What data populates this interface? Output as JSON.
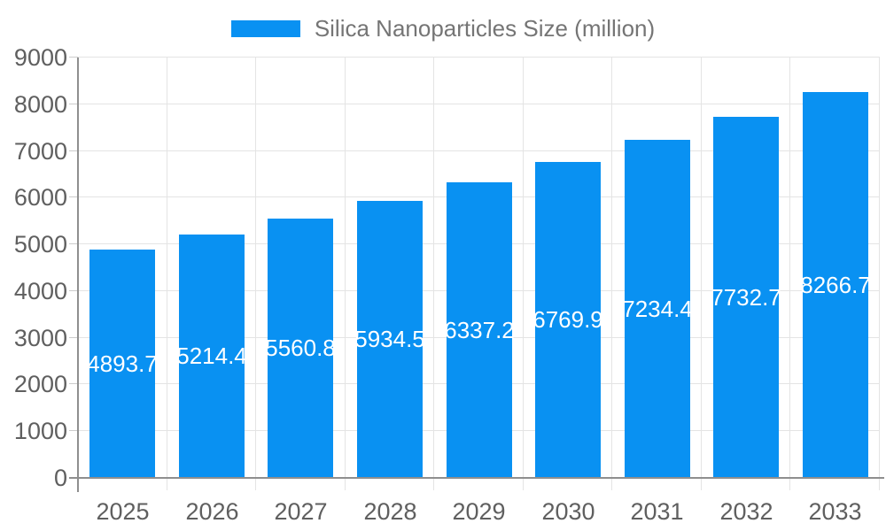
{
  "chart_data": {
    "type": "bar",
    "title": "Silica Nanoparticles Size (million)",
    "categories": [
      "2025",
      "2026",
      "2027",
      "2028",
      "2029",
      "2030",
      "2031",
      "2032",
      "2033"
    ],
    "series": [
      {
        "name": "Silica Nanoparticles Size (million)",
        "values": [
          4893.7,
          5214.4,
          5560.8,
          5934.5,
          6337.2,
          6769.9,
          7234.4,
          7732.7,
          8266.7
        ]
      }
    ],
    "xlabel": "",
    "ylabel": "",
    "ylim": [
      0,
      9000
    ],
    "yticks": [
      0,
      1000,
      2000,
      3000,
      4000,
      5000,
      6000,
      7000,
      8000,
      9000
    ],
    "grid": true,
    "legend_position": "top-center",
    "value_label_position": "inside-center",
    "value_label_decimals": 1,
    "colors": {
      "bar": "#0991f2",
      "value_label": "#ffffff",
      "axis_text": "#5f5f5f",
      "legend_text": "#757575",
      "gridline": "#e4e4e4",
      "tick": "#cccccc",
      "axis_line": "#8f8f8f",
      "background": "#ffffff"
    }
  }
}
